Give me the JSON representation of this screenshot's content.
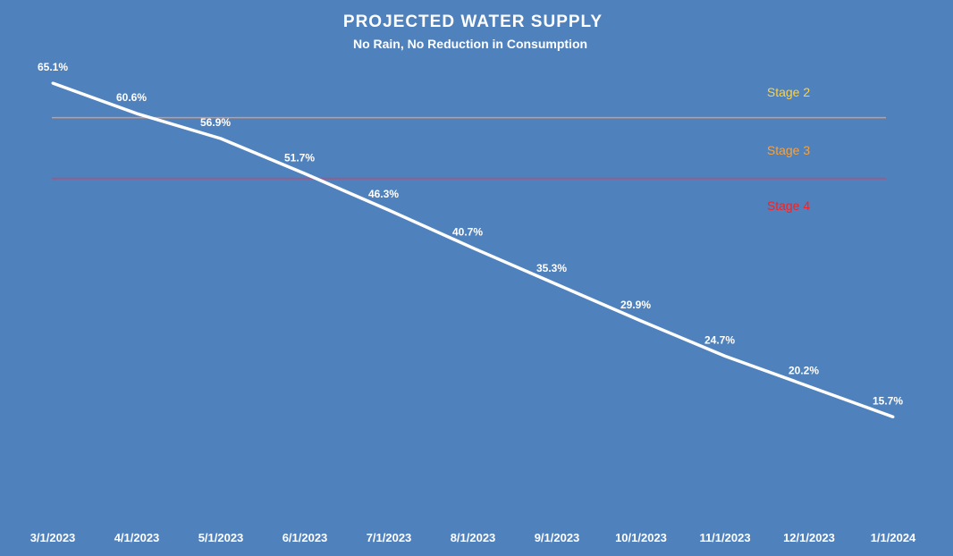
{
  "chart_data": {
    "type": "line",
    "title": "PROJECTED WATER SUPPLY",
    "subtitle": "No Rain, No Reduction in Consumption",
    "categories": [
      "3/1/2023",
      "4/1/2023",
      "5/1/2023",
      "6/1/2023",
      "7/1/2023",
      "8/1/2023",
      "9/1/2023",
      "10/1/2023",
      "11/1/2023",
      "12/1/2023",
      "1/1/2024"
    ],
    "values": [
      65.1,
      60.6,
      56.9,
      51.7,
      46.3,
      40.7,
      35.3,
      29.9,
      24.7,
      20.2,
      15.7
    ],
    "data_labels": [
      "65.1%",
      "60.6%",
      "56.9%",
      "51.7%",
      "46.3%",
      "40.7%",
      "35.3%",
      "29.9%",
      "24.7%",
      "20.2%",
      "15.7%"
    ],
    "ylim": [
      0,
      70
    ],
    "y_axis_visible": false,
    "grid": false,
    "drop_lines": true,
    "line_color": "#FFFFFF",
    "background_color": "#4F81BD",
    "threshold_lines": [
      {
        "value": 60,
        "color": "#E8955C"
      },
      {
        "value": 51,
        "color": "#E0405A"
      }
    ],
    "annotations": [
      {
        "text": "Stage 2",
        "color": "#FFD23C"
      },
      {
        "text": "Stage 3",
        "color": "#F7A23A"
      },
      {
        "text": "Stage 4",
        "color": "#FF1E1E"
      }
    ]
  }
}
